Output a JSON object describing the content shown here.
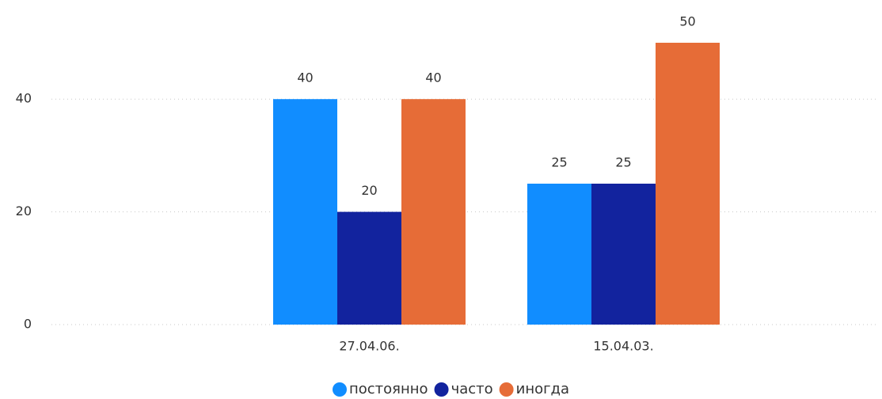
{
  "chart_data": {
    "type": "bar",
    "categories": [
      "27.04.06.",
      "15.04.03."
    ],
    "series": [
      {
        "name": "постоянно",
        "color": "#118DFF",
        "values": [
          40,
          25
        ]
      },
      {
        "name": "часто",
        "color": "#12239E",
        "values": [
          20,
          25
        ]
      },
      {
        "name": "иногда",
        "color": "#E66C37",
        "values": [
          40,
          50
        ]
      }
    ],
    "ylim": [
      0,
      50
    ],
    "yticks": [
      0,
      20,
      40
    ],
    "grid": true
  }
}
